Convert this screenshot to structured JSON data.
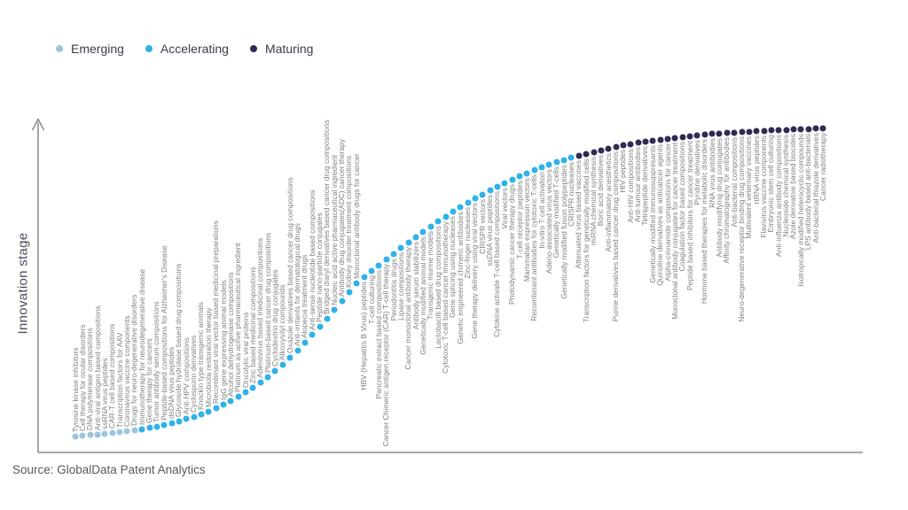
{
  "source_text": "Source: GlobalData Patent Analytics",
  "chart_data": {
    "type": "scatter",
    "title": "",
    "xlabel": "",
    "ylabel": "Innovation stage",
    "grid": false,
    "legend_position": "top-left",
    "curve_shape": "s-curve",
    "stage_colors": {
      "emerging": "#9ac5dd",
      "accelerating": "#2fb2e8",
      "maturing": "#2e2b55"
    },
    "series": [
      {
        "name": "Emerging",
        "color": "#9ac5dd",
        "points": [
          "Tyrosine kinase inhibitors",
          "Cell therapy for ocular disorders",
          "DNA polymerase compositions",
          "Anti-viral antigen based compositions",
          "ssRNA virus peptides",
          "CAR-T cell based compositions",
          "Transcription factors for AAV",
          "Coronavirus vaccine components",
          "Drugs for neuro-degenerative disorders"
        ]
      },
      {
        "name": "Accelerating",
        "color": "#2fb2e8",
        "points": [
          "Immunotherapy for neurodegenerative disease",
          "Gene therapy for cancers",
          "Tumor antibody serum compositions",
          "Peptide-based compositions for Alzheimer's Disease",
          "dsDNA virus peptides",
          "Glycoside hydrolase based drug compositions",
          "Anti-HPV compositions",
          "Cyclosporin derivatives",
          "Knockin type transgenic animals",
          "Microbiota restoration therapy",
          "Recombinant viral vector based medicinal preparations",
          "IgG gene expressing animal models",
          "Alcohol dehydrogenase compositions",
          "Platinum as active pharmaceutical ingredient",
          "Oncolytic viral proteins",
          "Zinc based medicinal compositions",
          "Adenovirus based medicinal compositions",
          "Platinum-based cancer drug compositions",
          "Cyclodextrin drug conjugates",
          "Alkoxysilyl compounds",
          "Oxazole derivatives based cancer drug compositions",
          "Anti-irritants for dermatological drugs",
          "Alopecia treatment drugs",
          "Anti-sense nucleotide based compositions",
          "Peptide nano-particle conjugates",
          "Bridged diaryl derivatives based cancer drug compositions",
          "Nucleic acid active pharmaceutical ingredient",
          "Antibody drug conjugates(ADC) cancer therapy",
          "Kidney disorder treatment compositions",
          "Monoclonal antibody drugs for cancer",
          "HBV (Hepatitis B Virus) peptides",
          "T-cell culturing",
          "Pancreatic extract based compositions",
          "Cancer Chimeric antigen receptor (CAR) T-cell therapy",
          "Periodontitis drugs",
          "Lipase compositions",
          "Cancer monoclonal antibody therapy",
          "Antibody serum stabilizers",
          "Genetically modified animal models",
          "Transgenic murine models",
          "Lactobacilli based drug compositions",
          "Cytotoxic T-cell based cancer immunotherapy",
          "Gene splicing using nucleases",
          "Genetic engineered chimeric antibodies",
          "Zinc-finger nucleases",
          "Gene therapy delivery using viral vectors",
          "CRISPR vectors",
          "ssDNA virus peptides",
          "Cytokine activate T-cell based compositions",
          "Viral vectors",
          "Photodynamic cancer therapy drugs",
          "T-cell receptor peptides",
          "Mammalian expression vectors",
          "Recombinant antibodies for cytotoxic T-cells",
          "In-vitro T-cell activation",
          "Adeno-associated virus vectors",
          "Genetically modified T-cells",
          "Genetically modified fusion polypeptides",
          "CRISPR nucleases"
        ]
      },
      {
        "name": "Maturing",
        "color": "#2e2b55",
        "points": [
          "Attenuated virus based vaccines",
          "Transcription factors for genetically modified cells",
          "miRNA chemical synthesis",
          "Boric acid derivatives",
          "Anti-inflammatory anesthetics",
          "Purine derivatives based cancer drug compositions",
          "HIV peptides",
          "Anti-HIV compositions",
          "Anti-tumour antibodies",
          "Tetrapeptide derivatives",
          "Genetically modified immunosuppresants",
          "Quinoline derivatives as anticancer agents",
          "Alpha-cinnamide compositions for cancer",
          "Monoclonal antibody conjugates for cancer treatment",
          "Coagulation factor based compositions",
          "Peptide based inhibitors for cancer treatment",
          "Pyridine derivatives",
          "Hormone based therapies for metabolic disorders",
          "RNA virus antibodies",
          "Antibody modifying drug conjugates",
          "Affinity chromatography for antibodies",
          "Anti-bacterial compositions",
          "Neuro-degenerative receptor binding drug compositions",
          "Multivalent veterinary vaccines",
          "rtRNA virus peptides",
          "Flavivirus vaccine components",
          "Embryonic stem cell culturing",
          "Anti-influenza antibody compositions",
          "Nucleoside chemical synthesis",
          "Azole derivative based biocides",
          "Isotropically modified heterocyclic compounds",
          "LPS antibody based anti-bacterials",
          "Anti-bacterial thiazole derivatives",
          "Cancer radiotherapy"
        ]
      }
    ]
  }
}
